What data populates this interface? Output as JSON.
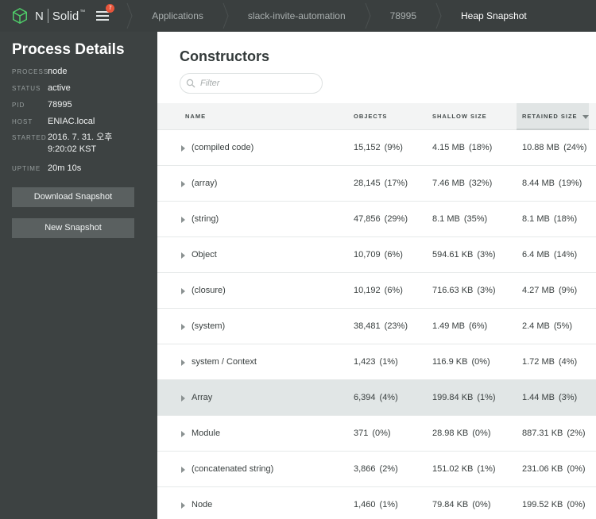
{
  "topbar": {
    "logo_n": "N",
    "logo_solid": "Solid",
    "logo_tm": "™",
    "notification_count": "7",
    "breadcrumbs": [
      {
        "label": "Applications"
      },
      {
        "label": "slack-invite-automation"
      },
      {
        "label": "78995"
      },
      {
        "label": "Heap Snapshot"
      }
    ]
  },
  "sidebar": {
    "title": "Process Details",
    "details": [
      {
        "key": "PROCESS",
        "value": "node"
      },
      {
        "key": "STATUS",
        "value": "active"
      },
      {
        "key": "PID",
        "value": "78995"
      },
      {
        "key": "HOST",
        "value": "ENIAC.local"
      },
      {
        "key": "STARTED",
        "value": "2016. 7. 31. 오후\n9:20:02 KST"
      },
      {
        "key": "UPTIME",
        "value": "20m 10s"
      }
    ],
    "download_label": "Download Snapshot",
    "new_label": "New Snapshot"
  },
  "main": {
    "title": "Constructors",
    "filter_placeholder": "Filter",
    "columns": {
      "name": "NAME",
      "objects": "OBJECTS",
      "shallow": "SHALLOW SIZE",
      "retained": "RETAINED SIZE"
    },
    "sorted_column": "retained",
    "rows": [
      {
        "name": "(compiled code)",
        "objects": "15,152",
        "objects_pct": "(9%)",
        "shallow": "4.15 MB",
        "shallow_pct": "(18%)",
        "retained": "10.88 MB",
        "retained_pct": "(24%)"
      },
      {
        "name": "(array)",
        "objects": "28,145",
        "objects_pct": "(17%)",
        "shallow": "7.46 MB",
        "shallow_pct": "(32%)",
        "retained": "8.44 MB",
        "retained_pct": "(19%)"
      },
      {
        "name": "(string)",
        "objects": "47,856",
        "objects_pct": "(29%)",
        "shallow": "8.1 MB",
        "shallow_pct": "(35%)",
        "retained": "8.1 MB",
        "retained_pct": "(18%)"
      },
      {
        "name": "Object",
        "objects": "10,709",
        "objects_pct": "(6%)",
        "shallow": "594.61 KB",
        "shallow_pct": "(3%)",
        "retained": "6.4 MB",
        "retained_pct": "(14%)"
      },
      {
        "name": "(closure)",
        "objects": "10,192",
        "objects_pct": "(6%)",
        "shallow": "716.63 KB",
        "shallow_pct": "(3%)",
        "retained": "4.27 MB",
        "retained_pct": "(9%)"
      },
      {
        "name": "(system)",
        "objects": "38,481",
        "objects_pct": "(23%)",
        "shallow": "1.49 MB",
        "shallow_pct": "(6%)",
        "retained": "2.4 MB",
        "retained_pct": "(5%)"
      },
      {
        "name": "system / Context",
        "objects": "1,423",
        "objects_pct": "(1%)",
        "shallow": "116.9 KB",
        "shallow_pct": "(0%)",
        "retained": "1.72 MB",
        "retained_pct": "(4%)"
      },
      {
        "name": "Array",
        "objects": "6,394",
        "objects_pct": "(4%)",
        "shallow": "199.84 KB",
        "shallow_pct": "(1%)",
        "retained": "1.44 MB",
        "retained_pct": "(3%)"
      },
      {
        "name": "Module",
        "objects": "371",
        "objects_pct": "(0%)",
        "shallow": "28.98 KB",
        "shallow_pct": "(0%)",
        "retained": "887.31 KB",
        "retained_pct": "(2%)"
      },
      {
        "name": "(concatenated string)",
        "objects": "3,866",
        "objects_pct": "(2%)",
        "shallow": "151.02 KB",
        "shallow_pct": "(1%)",
        "retained": "231.06 KB",
        "retained_pct": "(0%)"
      },
      {
        "name": "Node",
        "objects": "1,460",
        "objects_pct": "(1%)",
        "shallow": "79.84 KB",
        "shallow_pct": "(0%)",
        "retained": "199.52 KB",
        "retained_pct": "(0%)"
      }
    ],
    "highlighted_row": "Array"
  }
}
